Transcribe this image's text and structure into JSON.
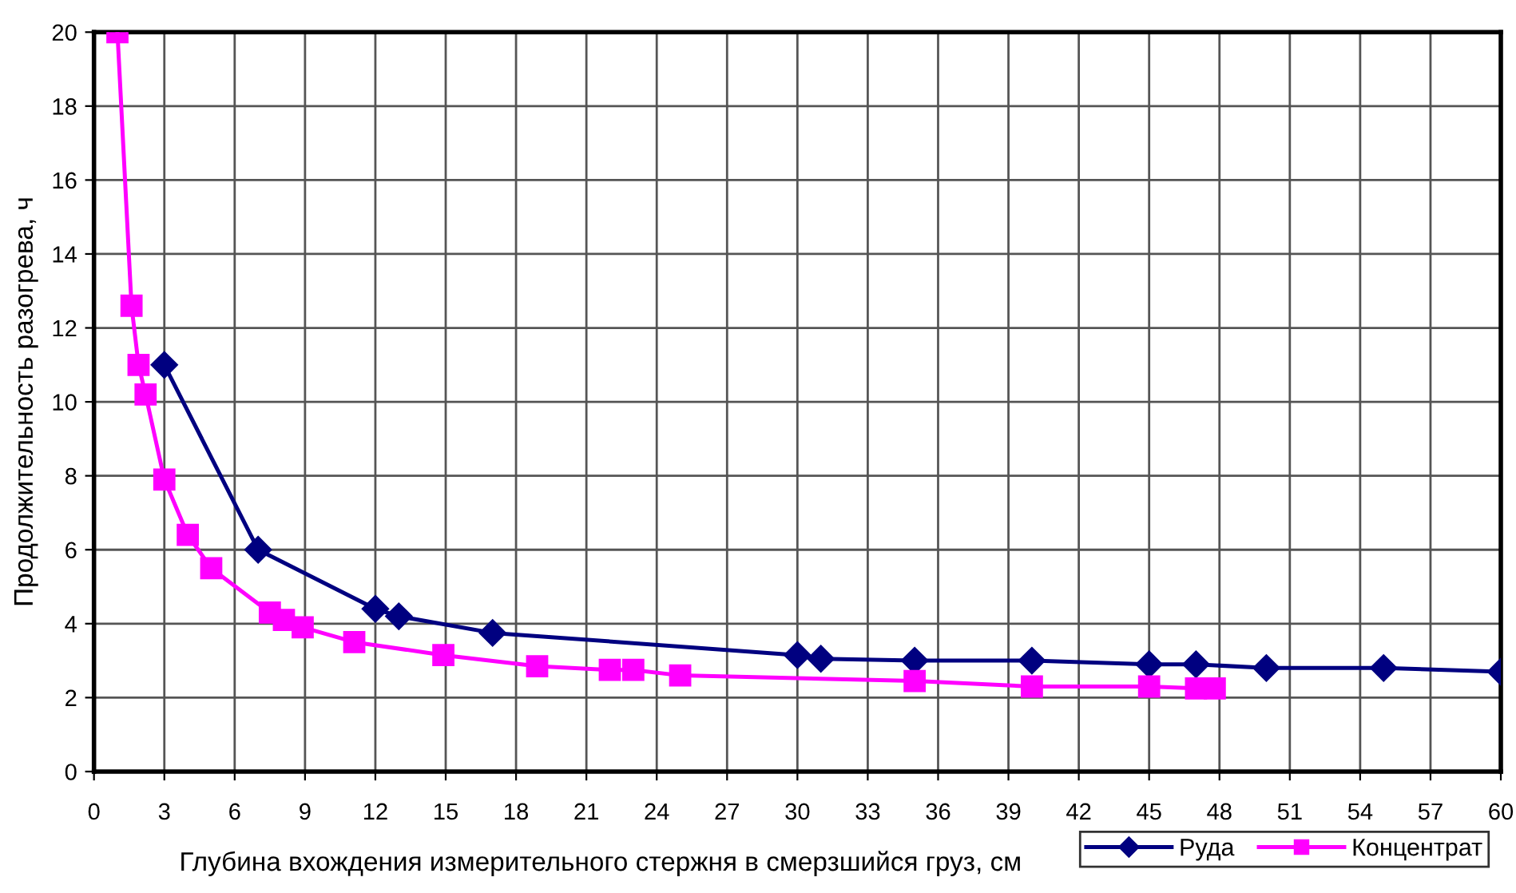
{
  "chart_data": {
    "type": "line",
    "xlabel": "Глубина вхождения измерительного стержня в смерзшийся груз, см",
    "ylabel": "Продолжительность разогрева, ч",
    "xlim": [
      0,
      60
    ],
    "xticks": [
      0,
      3,
      6,
      9,
      12,
      15,
      18,
      21,
      24,
      27,
      30,
      33,
      36,
      39,
      42,
      45,
      48,
      51,
      54,
      57,
      60
    ],
    "ylim": [
      0,
      20
    ],
    "yticks": [
      0,
      2,
      4,
      6,
      8,
      10,
      12,
      14,
      16,
      18,
      20
    ],
    "grid": true,
    "legend": "bottom right",
    "series": [
      {
        "name": "Руда",
        "color": "#000080",
        "marker": "diamond",
        "x": [
          3,
          7,
          12,
          13,
          17,
          30,
          31,
          35,
          40,
          45,
          47,
          50,
          55,
          60
        ],
        "values": [
          11.0,
          6.0,
          4.4,
          4.2,
          3.75,
          3.15,
          3.05,
          3.0,
          3.0,
          2.9,
          2.9,
          2.8,
          2.8,
          2.7
        ]
      },
      {
        "name": "Концентрат",
        "color": "#ff00ff",
        "marker": "square",
        "x": [
          1,
          1.6,
          1.9,
          2.2,
          3,
          4,
          5,
          7.5,
          8.1,
          8.9,
          11.1,
          14.9,
          18.9,
          22,
          23,
          25,
          35,
          40,
          45,
          47,
          47.8
        ],
        "values": [
          20,
          12.6,
          11.0,
          10.2,
          7.9,
          6.4,
          5.5,
          4.3,
          4.1,
          3.9,
          3.5,
          3.15,
          2.85,
          2.75,
          2.75,
          2.6,
          2.45,
          2.3,
          2.3,
          2.25,
          2.25
        ]
      }
    ]
  }
}
